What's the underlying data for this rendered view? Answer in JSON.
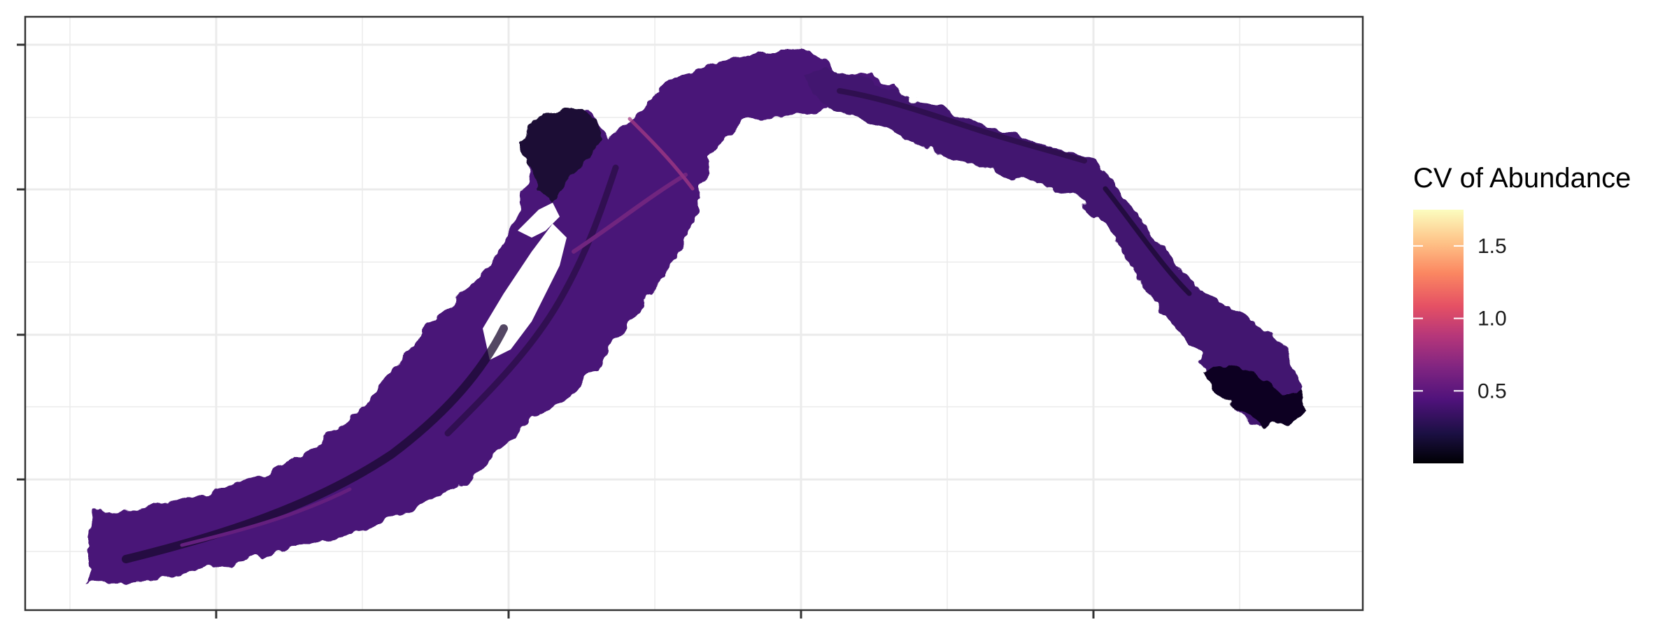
{
  "legend": {
    "title": "CV of Abundance",
    "palette": "magma",
    "domain": [
      0,
      1.75
    ],
    "ticks": [
      {
        "value": 1.5,
        "label": "1.5"
      },
      {
        "value": 1.0,
        "label": "1.0"
      },
      {
        "value": 0.5,
        "label": "0.5"
      }
    ],
    "colors": [
      "#000004",
      "#1c1044",
      "#4f127b",
      "#812581",
      "#b5367a",
      "#e55064",
      "#fb8761",
      "#fec287",
      "#fcfdbf"
    ]
  },
  "map": {
    "panel_background": "#ffffff",
    "grid": true,
    "grid_color": "#ebebeb",
    "land_color": "#ffffff",
    "region_dominant_color": "#4f1a7a",
    "axis_labels_shown": false
  }
}
